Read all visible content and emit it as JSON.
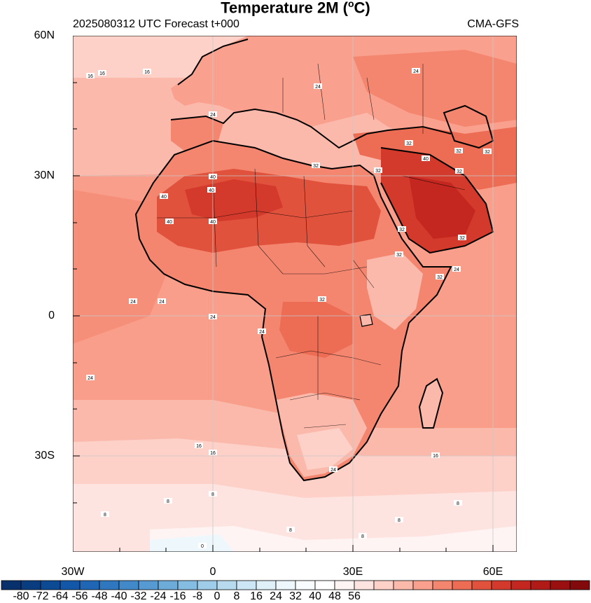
{
  "header": {
    "title": "Temperature  2M (",
    "title_unit": "o",
    "title_end": "C)",
    "subtitle": "2025080312 UTC Forecast t+000",
    "model": "CMA-GFS"
  },
  "axes": {
    "lat_labels": [
      "60N",
      "30N",
      "0",
      "30S"
    ],
    "lon_labels": [
      "30W",
      "0",
      "30E",
      "60E"
    ],
    "lat_values": [
      60,
      30,
      0,
      -30
    ],
    "lon_values": [
      -30,
      0,
      30,
      60
    ],
    "lon_range": [
      -30,
      65
    ],
    "lat_range": [
      -50,
      60
    ]
  },
  "colorbar": {
    "labels": [
      "-80",
      "-72",
      "-64",
      "-56",
      "-48",
      "-40",
      "-32",
      "-24",
      "-16",
      "-8",
      "0",
      "8",
      "16",
      "24",
      "32",
      "40",
      "48",
      "56"
    ],
    "colors": [
      "#08306b",
      "#0a3d80",
      "#0c4a94",
      "#1357a8",
      "#1f66b5",
      "#2f78c0",
      "#4289c9",
      "#579ad1",
      "#6dabd9",
      "#85bde2",
      "#9fcce9",
      "#b7daef",
      "#cde6f5",
      "#e0f0f9",
      "#eef7fc",
      "#f9fcff",
      "#ffffff",
      "#fff4f4",
      "#fee4e1",
      "#fdd0c8",
      "#fbb9ac",
      "#f9a08e",
      "#f48670",
      "#ec6c54",
      "#e1523d",
      "#d43a2b",
      "#c4271f",
      "#b01a17",
      "#9a1011",
      "#82090c"
    ]
  },
  "contour_labels": [
    "16",
    "16",
    "16",
    "16",
    "16",
    "16",
    "24",
    "24",
    "24",
    "24",
    "24",
    "24",
    "24",
    "24",
    "24",
    "24",
    "32",
    "32",
    "32",
    "32",
    "32",
    "32",
    "32",
    "32",
    "32",
    "32",
    "32",
    "40",
    "40",
    "40",
    "40",
    "40",
    "40",
    "8",
    "8",
    "8",
    "8",
    "8",
    "8",
    "8",
    "0"
  ]
}
